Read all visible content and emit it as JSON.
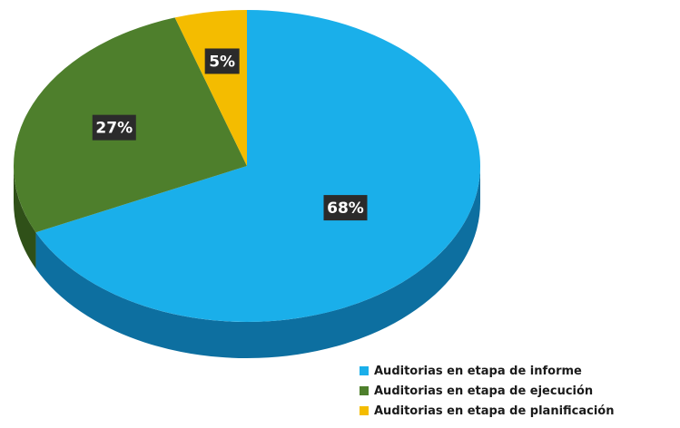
{
  "chart_data": {
    "type": "pie",
    "slices": [
      {
        "label": "Auditorias en etapa de informe",
        "value": 68,
        "value_label": "68%",
        "color": "#1aafea",
        "side_color": "#0d6fa0"
      },
      {
        "label": "Auditorias en etapa de ejecución",
        "value": 27,
        "value_label": "27%",
        "color": "#4e7f2c",
        "side_color": "#2f5018"
      },
      {
        "label": "Auditorias en etapa de planificación",
        "value": 5,
        "value_label": "5%",
        "color": "#f4bc00",
        "side_color": "#a07a00"
      }
    ],
    "start_angle_deg": 0,
    "direction": "clockwise",
    "three_d": true,
    "legend_position": "bottom-right",
    "data_label_background": "#2b2b2b"
  }
}
